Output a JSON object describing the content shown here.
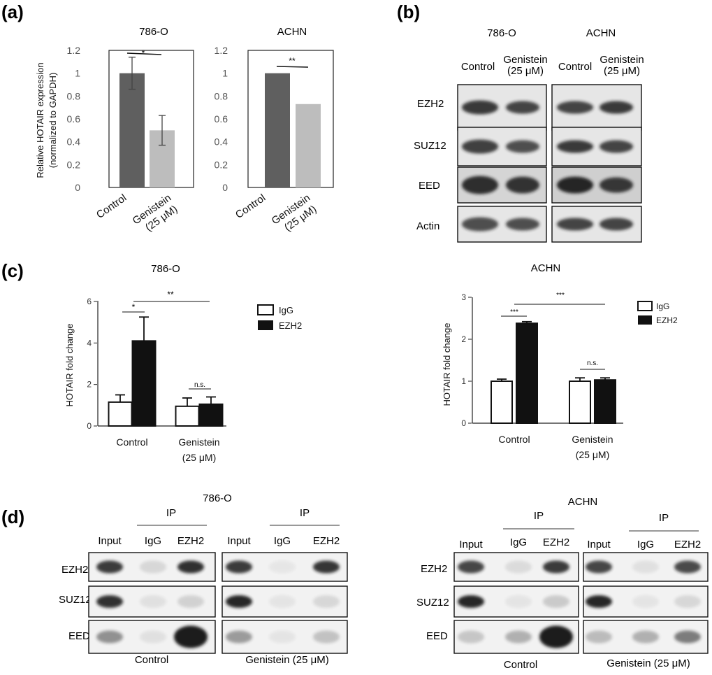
{
  "panels": {
    "a": "(a)",
    "b": "(b)",
    "c": "(c)",
    "d": "(d)"
  },
  "chart_data": [
    {
      "id": "a1",
      "type": "bar",
      "title": "786-O",
      "ylabel": [
        "Relative HOTAIR expression",
        "(normalized to GAPDH)"
      ],
      "xticks": [
        "Control",
        "Genistein",
        "(25 μM)"
      ],
      "yticks": [
        "0",
        "0.2",
        "0.4",
        "0.6",
        "0.8",
        "1",
        "1.2"
      ],
      "ylim": [
        0,
        1.2
      ],
      "categories": [
        "Control",
        "Genistein (25 μM)"
      ],
      "values": [
        1.0,
        0.5
      ],
      "errors": [
        0.14,
        0.13
      ],
      "colors": [
        "#5f5f5f",
        "#bdbdbd"
      ],
      "significance": "*"
    },
    {
      "id": "a2",
      "type": "bar",
      "title": "ACHN",
      "xticks": [
        "Control",
        "Genistein",
        "(25 μM)"
      ],
      "yticks": [
        "0",
        "0.2",
        "0.4",
        "0.6",
        "0.8",
        "1",
        "1.2"
      ],
      "ylim": [
        0,
        1.2
      ],
      "categories": [
        "Control",
        "Genistein (25 μM)"
      ],
      "values": [
        1.0,
        0.73
      ],
      "errors": [
        0.005,
        0.004
      ],
      "colors": [
        "#5f5f5f",
        "#bdbdbd"
      ],
      "significance": "**"
    },
    {
      "id": "c1",
      "type": "bar",
      "title": "786-O",
      "ylabel": "HOTAIR fold change",
      "yticks": [
        "0",
        "2",
        "4",
        "6"
      ],
      "ylim": [
        0,
        6
      ],
      "xticks": [
        "Control",
        "Genistein",
        "(25 μM)"
      ],
      "categories": [
        "Control",
        "Genistein (25 μM)"
      ],
      "legend": [
        "IgG",
        "EZH2"
      ],
      "series": [
        {
          "name": "IgG",
          "values": [
            1.15,
            0.95
          ],
          "errors": [
            0.35,
            0.4
          ],
          "fill": "#ffffff"
        },
        {
          "name": "EZH2",
          "values": [
            4.1,
            1.05
          ],
          "errors": [
            1.15,
            0.35
          ],
          "fill": "#111111"
        }
      ],
      "significance": [
        "*",
        "**",
        "n.s."
      ]
    },
    {
      "id": "c2",
      "type": "bar",
      "title": "ACHN",
      "ylabel": "HOTAIR fold change",
      "yticks": [
        "0",
        "1",
        "2",
        "3"
      ],
      "ylim": [
        0,
        3
      ],
      "xticks": [
        "Control",
        "Genistein",
        "(25 μM)"
      ],
      "categories": [
        "Control",
        "Genistein (25 μM)"
      ],
      "legend": [
        "IgG",
        "EZH2"
      ],
      "series": [
        {
          "name": "IgG",
          "values": [
            1.0,
            1.0
          ],
          "errors": [
            0.05,
            0.08
          ],
          "fill": "#ffffff"
        },
        {
          "name": "EZH2",
          "values": [
            2.38,
            1.03
          ],
          "errors": [
            0.04,
            0.05
          ],
          "fill": "#111111"
        }
      ],
      "significance": [
        "***",
        "***",
        "n.s."
      ]
    }
  ],
  "blots_b": {
    "cells": [
      "786-O",
      "ACHN"
    ],
    "conditions": [
      [
        "Control",
        ""
      ],
      [
        "Genistein",
        "(25 μM)"
      ],
      [
        "Control",
        ""
      ],
      [
        "Genistein",
        "(25 μM)"
      ]
    ],
    "proteins": [
      "EZH2",
      "SUZ12",
      "EED",
      "Actin"
    ]
  },
  "blots_d": [
    {
      "cell": "786-O",
      "groups": [
        {
          "ip": "IP",
          "cols": [
            "Input",
            "IgG",
            "EZH2"
          ],
          "caption": "Control"
        },
        {
          "ip": "IP",
          "cols": [
            "Input",
            "IgG",
            "EZH2"
          ],
          "caption": "Genistein (25 μM)"
        }
      ],
      "rows": [
        "EZH2",
        "SUZ12",
        "EED"
      ]
    },
    {
      "cell": "ACHN",
      "groups": [
        {
          "ip": "IP",
          "cols": [
            "Input",
            "IgG",
            "EZH2"
          ],
          "caption": "Control"
        },
        {
          "ip": "IP",
          "cols": [
            "Input",
            "IgG",
            "EZH2"
          ],
          "caption": "Genistein (25 μM)"
        }
      ],
      "rows": [
        "EZH2",
        "SUZ12",
        "EED"
      ]
    }
  ]
}
